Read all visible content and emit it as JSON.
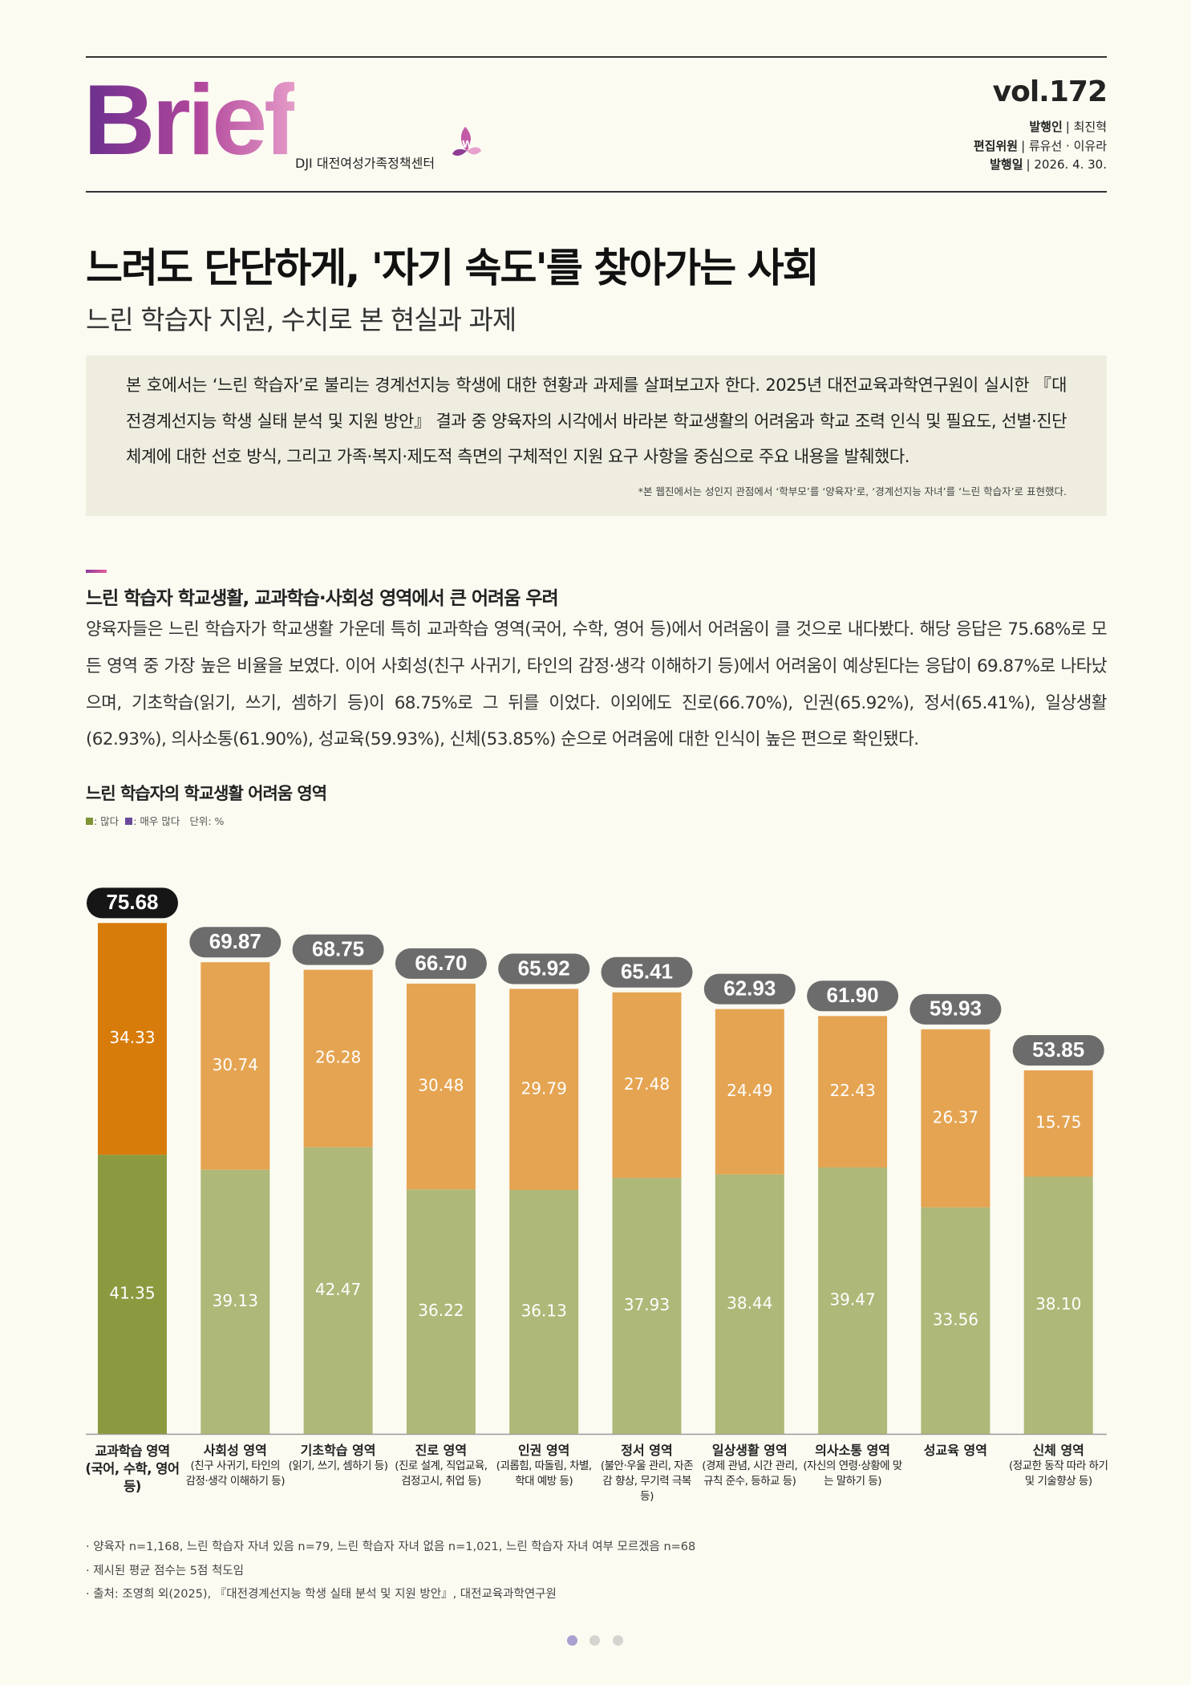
{
  "header": {
    "logo": "Brief",
    "org": "DJI 대전여성가족정책센터",
    "vol": "vol.172",
    "credits": [
      {
        "role": "발행인",
        "detail": "| 최진혁"
      },
      {
        "role": "편집위원",
        "detail": "| 류유선 · 이유라"
      },
      {
        "role": "발행일",
        "detail": "| 2026. 4. 30."
      }
    ]
  },
  "title": "느려도 단단하게, '자기 속도'를 찾아가는 사회",
  "subtitle": "느린 학습자 지원, 수치로 본 현실과 과제",
  "intro": {
    "text": "본 호에서는 ‘느린 학습자’로 불리는 경계선지능 학생에 대한 현황과 과제를 살펴보고자 한다. 2025년 대전교육과학연구원이 실시한 『대전경계선지능 학생 실태 분석 및 지원 방안』 결과 중 양육자의 시각에서 바라본 학교생활의 어려움과 학교 조력 인식 및 필요도, 선별·진단 체계에 대한 선호 방식, 그리고 가족·복지·제도적 측면의 구체적인 지원 요구 사항을 중심으로 주요 내용을 발췌했다.",
    "note": "*본 웹진에서는 성인지 관점에서 ‘학부모’를 ‘양육자’로, ‘경계선지능 자녀’를 ‘느린 학습자’로 표현했다."
  },
  "section": {
    "heading": "느린 학습자 학교생활, 교과학습·사회성 영역에서 큰 어려움 우려",
    "body": "양육자들은 느린 학습자가 학교생활 가운데 특히 교과학습 영역(국어, 수학, 영어 등)에서 어려움이 클 것으로 내다봤다. 해당 응답은 75.68%로 모든 영역 중 가장 높은 비율을 보였다. 이어 사회성(친구 사귀기, 타인의 감정·생각 이해하기 등)에서 어려움이 예상된다는 응답이 69.87%로 나타났으며, 기초학습(읽기, 쓰기, 셈하기 등)이 68.75%로 그 뒤를 이었다. 이외에도 진로(66.70%), 인권(65.92%), 정서(65.41%), 일상생활(62.93%), 의사소통(61.90%), 성교육(59.93%), 신체(53.85%) 순으로 어려움에 대한 인식이 높은 편으로 확인됐다."
  },
  "chart_data": {
    "type": "stacked_bar",
    "title": "느린 학습자의 학교생활 어려움 영역",
    "unit": "단위: %",
    "categories": [
      "교과학습 영역",
      "사회성 영역",
      "기초학습 영역",
      "진로 영역",
      "인권 영역",
      "정서 영역",
      "일상생활 영역",
      "의사소통 영역",
      "성교육 영역",
      "신체 영역"
    ],
    "category_notes": [
      "(국어, 수학, 영어 등)",
      "(친구 사귀기, 타인의 감정·생각 이해하기 등)",
      "(읽기, 쓰기, 셈하기 등)",
      "(진로 설계, 직업교육, 검정고시, 취업 등)",
      "(괴롭힘, 따돌림, 차별, 학대 예방 등)",
      "(불안·우울 관리, 자존감 향상, 무기력 극복 등)",
      "(경제 관념, 시간 관리, 규칙 준수, 등하교 등)",
      "(자신의 연령·상황에 맞는 말하기 등)",
      null,
      "(정교한 동작 따라 하기 및 기술향상 등)"
    ],
    "series": [
      {
        "name": ": 많다",
        "color": "#7f9435",
        "colors": [
          "#8b9a3f",
          "#aeb878",
          "#aeb878",
          "#aeb878",
          "#aeb878",
          "#aeb878",
          "#aeb878",
          "#aeb878",
          "#aeb878",
          "#aeb878"
        ],
        "values": [
          41.35,
          39.13,
          42.47,
          36.22,
          36.13,
          37.93,
          38.44,
          39.47,
          33.56,
          38.1
        ],
        "value_labels": [
          "41.35",
          "39.13",
          "42.47",
          "36.22",
          "36.13",
          "37.93",
          "38.44",
          "39.47",
          "33.56",
          "38.10"
        ]
      },
      {
        "name": ": 매우 많다",
        "color": "#6a4a9c",
        "colors": [
          "#d77c0a",
          "#e5a452",
          "#e5a452",
          "#e5a452",
          "#e5a452",
          "#e5a452",
          "#e5a452",
          "#e5a452",
          "#e5a452",
          "#e5a452"
        ],
        "values": [
          34.33,
          30.74,
          26.28,
          30.48,
          29.79,
          27.48,
          24.49,
          22.43,
          26.37,
          15.75
        ]
      }
    ],
    "total_labels": [
      75.68,
      69.87,
      68.75,
      66.7,
      65.92,
      65.41,
      62.93,
      61.9,
      59.93,
      53.85
    ],
    "total_label_strings": [
      "75.68",
      "69.87",
      "68.75",
      "66.70",
      "65.92",
      "65.41",
      "62.93",
      "61.90",
      "59.93",
      "53.85"
    ],
    "total_label_colors": [
      "#161616",
      "#6c6c6c",
      "#6c6c6c",
      "#6c6c6c",
      "#6c6c6c",
      "#6c6c6c",
      "#6c6c6c",
      "#6c6c6c",
      "#6c6c6c",
      "#6c6c6c"
    ],
    "ylim": [
      0,
      80
    ]
  },
  "footnotes": [
    "· 양육자 n=1,168, 느린 학습자 자녀 있음 n=79, 느린 학습자 자녀 없음 n=1,021, 느린 학습자 자녀 여부 모르겠음 n=68",
    "· 제시된 평균 점수는 5점 척도임",
    "· 출처: 조영희 외(2025), 『대전경계선지능 학생 실태 분석 및 지원 방안』, 대전교육과학연구원"
  ]
}
